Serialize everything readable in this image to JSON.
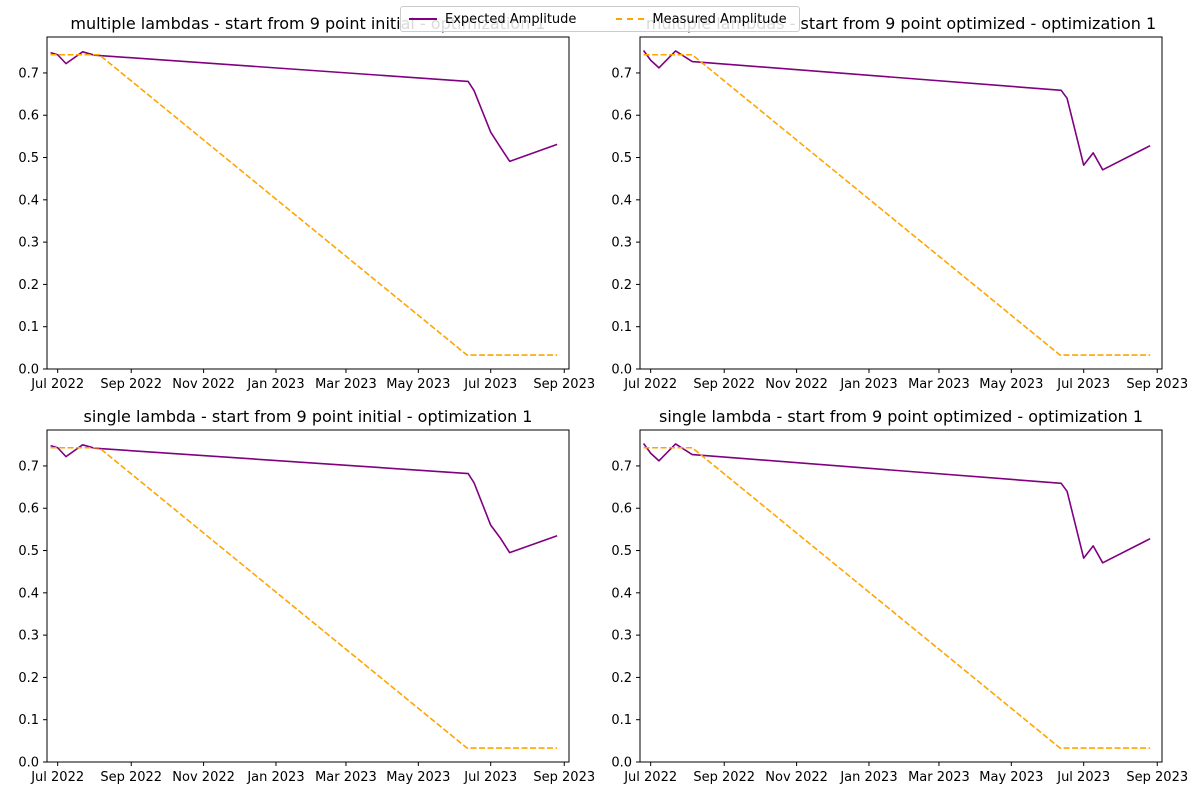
{
  "legend": {
    "expected_label": "Expected Amplitude",
    "measured_label": "Measured Amplitude"
  },
  "colors": {
    "expected": "#800080",
    "measured": "#ffa500"
  },
  "chart_data": [
    {
      "type": "line",
      "title": "multiple lambdas - start from 9 point initial - optimization 1",
      "xlabel": "",
      "ylabel": "",
      "x_ticks": [
        "Jul 2022",
        "Sep 2022",
        "Nov 2022",
        "Jan 2023",
        "Mar 2023",
        "May 2023",
        "Jul 2023",
        "Sep 2023"
      ],
      "y_ticks": [
        "0.0",
        "0.1",
        "0.2",
        "0.3",
        "0.4",
        "0.5",
        "0.6",
        "0.7"
      ],
      "xlim": [
        "2022-06-22",
        "2023-09-05"
      ],
      "ylim": [
        0,
        0.785
      ],
      "series": [
        {
          "name": "Expected Amplitude",
          "style": "solid",
          "x": [
            "2022-06-25",
            "2022-07-01",
            "2022-07-08",
            "2022-07-22",
            "2022-08-01",
            "2023-06-12",
            "2023-06-17",
            "2023-07-01",
            "2023-07-09",
            "2023-07-17",
            "2023-08-26"
          ],
          "y": [
            0.748,
            0.743,
            0.722,
            0.75,
            0.742,
            0.68,
            0.658,
            0.56,
            0.525,
            0.491,
            0.531
          ]
        },
        {
          "name": "Measured Amplitude",
          "style": "dashed",
          "x": [
            "2022-06-25",
            "2022-08-05",
            "2023-06-11",
            "2023-08-26"
          ],
          "y": [
            0.743,
            0.743,
            0.033,
            0.033
          ]
        }
      ]
    },
    {
      "type": "line",
      "title": "multiple lambdas - start from 9 point optimized - optimization 1",
      "xlabel": "",
      "ylabel": "",
      "x_ticks": [
        "Jul 2022",
        "Sep 2022",
        "Nov 2022",
        "Jan 2023",
        "Mar 2023",
        "May 2023",
        "Jul 2023",
        "Sep 2023"
      ],
      "y_ticks": [
        "0.0",
        "0.1",
        "0.2",
        "0.3",
        "0.4",
        "0.5",
        "0.6",
        "0.7"
      ],
      "xlim": [
        "2022-06-22",
        "2023-09-05"
      ],
      "ylim": [
        0,
        0.785
      ],
      "series": [
        {
          "name": "Expected Amplitude",
          "style": "solid",
          "x": [
            "2022-06-25",
            "2022-07-01",
            "2022-07-08",
            "2022-07-22",
            "2022-08-05",
            "2023-06-12",
            "2023-06-17",
            "2023-07-01",
            "2023-07-09",
            "2023-07-17",
            "2023-08-26"
          ],
          "y": [
            0.753,
            0.73,
            0.712,
            0.752,
            0.727,
            0.659,
            0.64,
            0.482,
            0.511,
            0.471,
            0.528
          ]
        },
        {
          "name": "Measured Amplitude",
          "style": "dashed",
          "x": [
            "2022-06-25",
            "2022-08-05",
            "2023-06-11",
            "2023-08-26"
          ],
          "y": [
            0.743,
            0.743,
            0.033,
            0.033
          ]
        }
      ]
    },
    {
      "type": "line",
      "title": "single lambda - start from 9 point initial - optimization 1",
      "xlabel": "",
      "ylabel": "",
      "x_ticks": [
        "Jul 2022",
        "Sep 2022",
        "Nov 2022",
        "Jan 2023",
        "Mar 2023",
        "May 2023",
        "Jul 2023",
        "Sep 2023"
      ],
      "y_ticks": [
        "0.0",
        "0.1",
        "0.2",
        "0.3",
        "0.4",
        "0.5",
        "0.6",
        "0.7"
      ],
      "xlim": [
        "2022-06-22",
        "2023-09-05"
      ],
      "ylim": [
        0,
        0.785
      ],
      "series": [
        {
          "name": "Expected Amplitude",
          "style": "solid",
          "x": [
            "2022-06-25",
            "2022-07-01",
            "2022-07-08",
            "2022-07-22",
            "2022-08-01",
            "2023-06-12",
            "2023-06-17",
            "2023-07-01",
            "2023-07-09",
            "2023-07-17",
            "2023-08-26"
          ],
          "y": [
            0.748,
            0.743,
            0.722,
            0.75,
            0.742,
            0.682,
            0.66,
            0.56,
            0.53,
            0.495,
            0.535
          ]
        },
        {
          "name": "Measured Amplitude",
          "style": "dashed",
          "x": [
            "2022-06-25",
            "2022-08-05",
            "2023-06-11",
            "2023-08-26"
          ],
          "y": [
            0.743,
            0.743,
            0.033,
            0.033
          ]
        }
      ]
    },
    {
      "type": "line",
      "title": "single lambda - start from 9 point optimized - optimization 1",
      "xlabel": "",
      "ylabel": "",
      "x_ticks": [
        "Jul 2022",
        "Sep 2022",
        "Nov 2022",
        "Jan 2023",
        "Mar 2023",
        "May 2023",
        "Jul 2023",
        "Sep 2023"
      ],
      "y_ticks": [
        "0.0",
        "0.1",
        "0.2",
        "0.3",
        "0.4",
        "0.5",
        "0.6",
        "0.7"
      ],
      "xlim": [
        "2022-06-22",
        "2023-09-05"
      ],
      "ylim": [
        0,
        0.785
      ],
      "series": [
        {
          "name": "Expected Amplitude",
          "style": "solid",
          "x": [
            "2022-06-25",
            "2022-07-01",
            "2022-07-08",
            "2022-07-22",
            "2022-08-05",
            "2023-06-12",
            "2023-06-17",
            "2023-07-01",
            "2023-07-09",
            "2023-07-17",
            "2023-08-26"
          ],
          "y": [
            0.753,
            0.73,
            0.712,
            0.752,
            0.727,
            0.659,
            0.64,
            0.482,
            0.511,
            0.471,
            0.528
          ]
        },
        {
          "name": "Measured Amplitude",
          "style": "dashed",
          "x": [
            "2022-06-25",
            "2022-08-05",
            "2023-06-11",
            "2023-08-26"
          ],
          "y": [
            0.743,
            0.743,
            0.033,
            0.033
          ]
        }
      ]
    }
  ]
}
